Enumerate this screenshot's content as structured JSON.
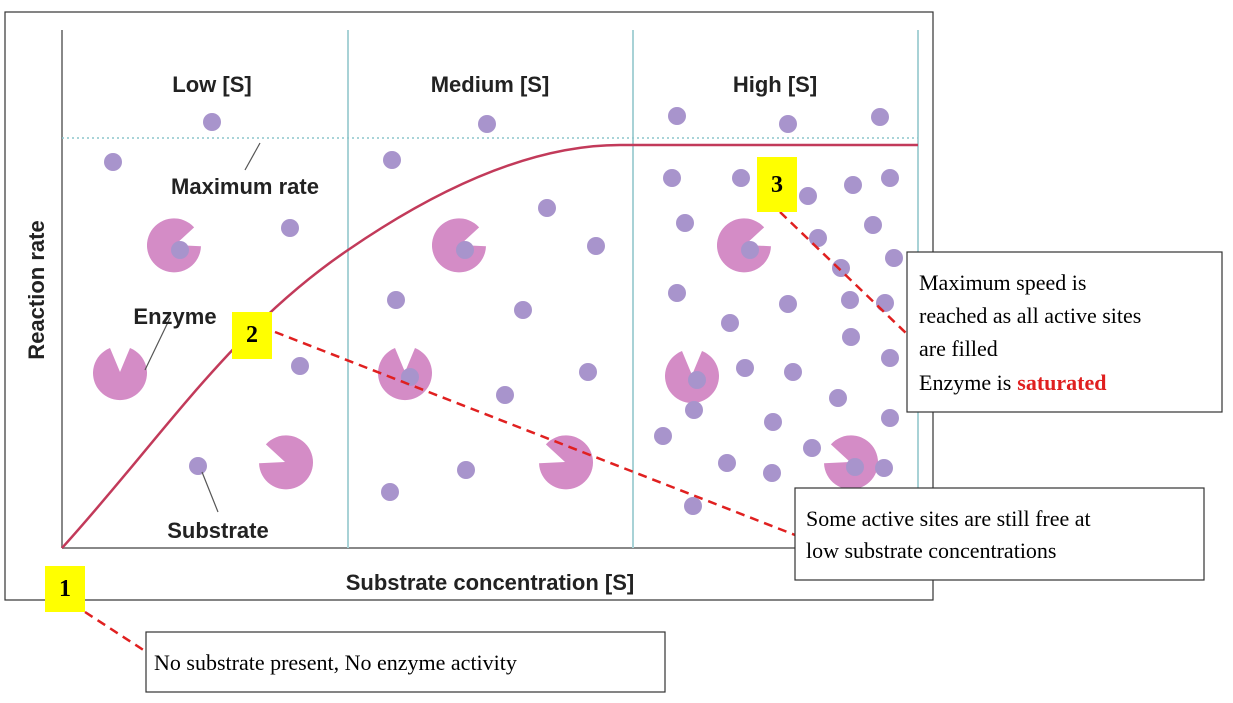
{
  "figure": {
    "sections": [
      "Low [S]",
      "Medium [S]",
      "High [S]"
    ],
    "y_axis_label": "Reaction rate",
    "x_axis_label": "Substrate concentration [S]",
    "labels": {
      "max_rate": "Maximum rate",
      "enzyme": "Enzyme",
      "substrate": "Substrate"
    }
  },
  "callouts": [
    {
      "marker": "1",
      "lines": [
        "No substrate present, No enzyme activity"
      ]
    },
    {
      "marker": "2",
      "lines": [
        "Some active sites are still free at",
        "low substrate concentrations"
      ]
    },
    {
      "marker": "3",
      "lines": [
        "Maximum speed is",
        "reached as all active sites",
        "are filled",
        "Enzyme is"
      ],
      "emphasis": "saturated"
    }
  ]
}
